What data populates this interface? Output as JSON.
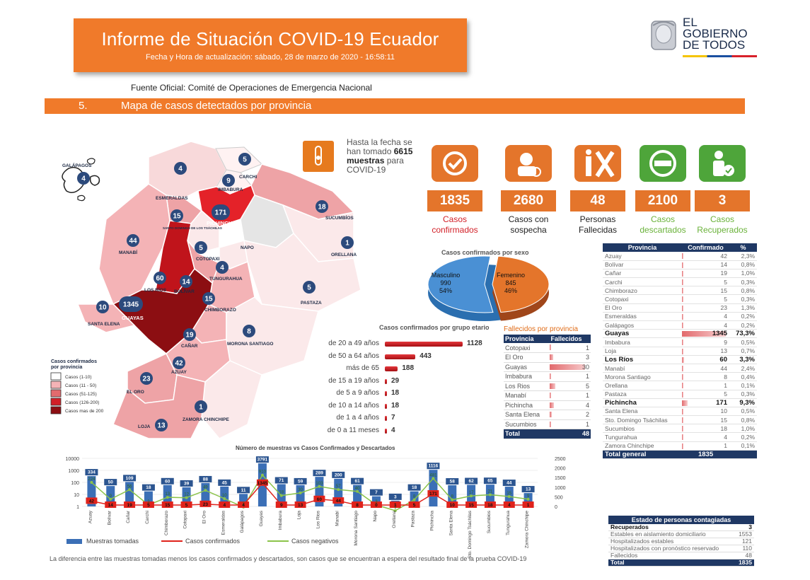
{
  "header": {
    "title": "Informe de Situación COVID-19 Ecuador",
    "subtitle": "Fecha y Hora de actualización: sábado, 28 de marzo de 2020 - 16:58:11"
  },
  "logo": {
    "line1": "EL",
    "line2": "GOBIERNO",
    "line3": "DE TODOS"
  },
  "source": "Fuente Oficial: Comité de Operaciones de Emergencia Nacional",
  "section": {
    "number": "5.",
    "title": "Mapa de casos detectados por provincia"
  },
  "map": {
    "provinces": [
      {
        "name": "GALÁPAGOS",
        "cases": "4"
      },
      {
        "name": "ESMERALDAS",
        "cases": "4"
      },
      {
        "name": "CARCHI",
        "cases": "5"
      },
      {
        "name": "IMBABURA",
        "cases": "9"
      },
      {
        "name": "PICHINCHA",
        "cases": "171"
      },
      {
        "name": "SANTO DOMINGO DE LOS TSÁCHILAS",
        "cases": "15"
      },
      {
        "name": "SUCUMBÍOS",
        "cases": "18"
      },
      {
        "name": "MANABÍ",
        "cases": "44"
      },
      {
        "name": "NAPO",
        "cases": ""
      },
      {
        "name": "ORELLANA",
        "cases": "1"
      },
      {
        "name": "COTOPAXI",
        "cases": "5"
      },
      {
        "name": "TUNGURAHUA",
        "cases": "4"
      },
      {
        "name": "LOS RÍOS",
        "cases": "60"
      },
      {
        "name": "BOLÍVAR",
        "cases": "14"
      },
      {
        "name": "PASTAZA",
        "cases": "5"
      },
      {
        "name": "CHIMBORAZO",
        "cases": "15"
      },
      {
        "name": "GUAYAS",
        "cases": "1345"
      },
      {
        "name": "SANTA ELENA",
        "cases": "10"
      },
      {
        "name": "MORONA SANTIAGO",
        "cases": "8"
      },
      {
        "name": "CAÑAR",
        "cases": "19"
      },
      {
        "name": "AZUAY",
        "cases": "42"
      },
      {
        "name": "EL ORO",
        "cases": "23"
      },
      {
        "name": "ZAMORA CHINCHIPE",
        "cases": "1"
      },
      {
        "name": "LOJA",
        "cases": "13"
      }
    ],
    "legend": {
      "title1": "Casos confirmados",
      "title2": "por provincia",
      "items": [
        {
          "label": "Casos (1-10)",
          "color": "#ffffff"
        },
        {
          "label": "Casos (11 - 50)",
          "color": "#f4b3b6"
        },
        {
          "label": "Casos (51-125)",
          "color": "#e26a6d"
        },
        {
          "label": "Casos (126-200)",
          "color": "#d21f27"
        },
        {
          "label": "Casos mas de 200",
          "color": "#8c0e12"
        }
      ]
    }
  },
  "samples": {
    "line1": "Hasta la fecha se",
    "line2a": "han tomado",
    "count": "6615",
    "line3a": "muestras",
    "line3b": "para",
    "line4": "COVID-19"
  },
  "stats": [
    {
      "value": "1835",
      "label1": "Casos",
      "label2": "confirmados",
      "color": "#e4752b",
      "labelcolor": "#d21f27",
      "icon": "check-icon"
    },
    {
      "value": "2680",
      "label1": "Casos con",
      "label2": "sospecha",
      "color": "#e4752b",
      "labelcolor": "#222222",
      "icon": "doctor-icon"
    },
    {
      "value": "48",
      "label1": "Personas",
      "label2": "Fallecidas",
      "color": "#e4752b",
      "labelcolor": "#222222",
      "icon": "deceased-icon"
    },
    {
      "value": "2100",
      "label1": "Casos",
      "label2": "descartados",
      "color": "#e4752b",
      "labelcolor": "#6ab23a",
      "icon": "minus-icon"
    },
    {
      "value": "3",
      "label1": "Casos",
      "label2": "Recuperados",
      "color": "#e4752b",
      "labelcolor": "#6ab23a",
      "icon": "recovered-icon"
    }
  ],
  "sex_chart": {
    "title": "Casos confirmados por sexo",
    "male": {
      "label": "Masculino",
      "value": "990",
      "pct": "54%",
      "fraction": 0.54
    },
    "female": {
      "label": "Femenino",
      "value": "845",
      "pct": "46%",
      "fraction": 0.46
    }
  },
  "age_chart": {
    "title": "Casos confirmados por grupo etario",
    "rows": [
      {
        "label": "de 20 a 49 años",
        "value": 1128
      },
      {
        "label": "de 50 a 64 años",
        "value": 443
      },
      {
        "label": "más de 65",
        "value": 188
      },
      {
        "label": "de 15 a 19 años",
        "value": 29
      },
      {
        "label": "de 5 a 9 años",
        "value": 18
      },
      {
        "label": "de 10 a 14 años",
        "value": 18
      },
      {
        "label": "de 1 a 4 años",
        "value": 7
      },
      {
        "label": "de 0 a 11 meses",
        "value": 4
      }
    ]
  },
  "fallecidos": {
    "title": "Fallecidos por provincia",
    "col1": "Provincia",
    "col2": "Fallecidos",
    "rows": [
      {
        "p": "Cotopaxi",
        "v": 1
      },
      {
        "p": "El Oro",
        "v": 3
      },
      {
        "p": "Guayas",
        "v": 30
      },
      {
        "p": "Imbabura",
        "v": 1
      },
      {
        "p": "Los Rios",
        "v": 5
      },
      {
        "p": "Manabí",
        "v": 1
      },
      {
        "p": "Pichincha",
        "v": 4
      },
      {
        "p": "Santa Elena",
        "v": 2
      },
      {
        "p": "Sucumbios",
        "v": 1
      }
    ],
    "total_label": "Total",
    "total": "48"
  },
  "province_table": {
    "col1": "Provincia",
    "col2": "Confirmado",
    "col3": "%",
    "rows": [
      {
        "p": "Azuay",
        "c": 42,
        "pct": "2,3%",
        "bold": false
      },
      {
        "p": "Bolívar",
        "c": 14,
        "pct": "0,8%",
        "bold": false
      },
      {
        "p": "Cañar",
        "c": 19,
        "pct": "1,0%",
        "bold": false
      },
      {
        "p": "Carchi",
        "c": 5,
        "pct": "0,3%",
        "bold": false
      },
      {
        "p": "Chimborazo",
        "c": 15,
        "pct": "0,8%",
        "bold": false
      },
      {
        "p": "Cotopaxi",
        "c": 5,
        "pct": "0,3%",
        "bold": false
      },
      {
        "p": "El Oro",
        "c": 23,
        "pct": "1,3%",
        "bold": false
      },
      {
        "p": "Esmeraldas",
        "c": 4,
        "pct": "0,2%",
        "bold": false
      },
      {
        "p": "Galápagos",
        "c": 4,
        "pct": "0,2%",
        "bold": false
      },
      {
        "p": "Guayas",
        "c": 1345,
        "pct": "73,3%",
        "bold": true
      },
      {
        "p": "Imbabura",
        "c": 9,
        "pct": "0,5%",
        "bold": false
      },
      {
        "p": "Loja",
        "c": 13,
        "pct": "0,7%",
        "bold": false
      },
      {
        "p": "Los Ríos",
        "c": 60,
        "pct": "3,3%",
        "bold": true
      },
      {
        "p": "Manabí",
        "c": 44,
        "pct": "2,4%",
        "bold": false
      },
      {
        "p": "Morona Santiago",
        "c": 8,
        "pct": "0,4%",
        "bold": false
      },
      {
        "p": "Orellana",
        "c": 1,
        "pct": "0,1%",
        "bold": false
      },
      {
        "p": "Pastaza",
        "c": 5,
        "pct": "0,3%",
        "bold": false
      },
      {
        "p": "Pichincha",
        "c": 171,
        "pct": "9,3%",
        "bold": true
      },
      {
        "p": "Santa Elena",
        "c": 10,
        "pct": "0,5%",
        "bold": false
      },
      {
        "p": "Sto. Domingo Tsáchilas",
        "c": 15,
        "pct": "0,8%",
        "bold": false
      },
      {
        "p": "Sucumbios",
        "c": 18,
        "pct": "1,0%",
        "bold": false
      },
      {
        "p": "Tungurahua",
        "c": 4,
        "pct": "0,2%",
        "bold": false
      },
      {
        "p": "Zamora Chinchipe",
        "c": 1,
        "pct": "0,1%",
        "bold": false
      }
    ],
    "total_label": "Total general",
    "total": "1835"
  },
  "status_table": {
    "title": "Estado de personas contagiadas",
    "rows": [
      {
        "l": "Recuperados",
        "v": "3",
        "bold": true
      },
      {
        "l": "Estables en aislamiento domiciliario",
        "v": "1553",
        "bold": false
      },
      {
        "l": "Hospitalizados estables",
        "v": "121",
        "bold": false
      },
      {
        "l": "Hospitalizados con pronóstico reservado",
        "v": "110",
        "bold": false
      },
      {
        "l": "Fallecidos",
        "v": "48",
        "bold": false
      }
    ],
    "total_label": "Total",
    "total": "1835"
  },
  "chart_data": {
    "type": "bar",
    "title": "Número de muestras vs Casos Confirmados y Descartados",
    "categories": [
      "Azuay",
      "Bolívar",
      "Cañar",
      "Carchi",
      "Chimborazo",
      "Cotopaxi",
      "El Oro",
      "Esmeraldas",
      "Galápagos",
      "Guayas",
      "Imbabura",
      "Loja",
      "Los Rios",
      "Manabí",
      "Morona Santiago",
      "Napo",
      "Orellana",
      "Pastaza",
      "Pichincha",
      "Santa Elena",
      "Sto. Domingo Tsáchilas",
      "Sucumbios",
      "Tungurahua",
      "Zamora Chinchipe"
    ],
    "series": [
      {
        "name": "Muestras tomadas",
        "values": [
          334,
          50,
          109,
          18,
          60,
          39,
          88,
          45,
          11,
          3791,
          71,
          59,
          289,
          200,
          61,
          7,
          3,
          18,
          1116,
          58,
          62,
          65,
          44,
          13
        ]
      },
      {
        "name": "Casos confirmados",
        "values": [
          42,
          14,
          19,
          5,
          15,
          5,
          23,
          4,
          4,
          1345,
          9,
          13,
          60,
          44,
          8,
          0,
          1,
          5,
          171,
          10,
          15,
          18,
          4,
          1
        ]
      },
      {
        "name": "Casos negativos",
        "values": [
          224,
          9,
          56,
          3,
          13,
          12,
          49,
          10,
          2,
          910,
          18,
          30,
          103,
          57,
          40,
          3,
          1,
          8,
          481,
          8,
          17,
          21,
          15,
          9
        ]
      }
    ],
    "left_axis_ticks": [
      "10000",
      "1000",
      "100",
      "10",
      "1"
    ],
    "right_axis_ticks": [
      "2500",
      "2000",
      "1500",
      "1000",
      "500",
      "0"
    ],
    "y_scale": "log"
  },
  "footnote": "La diferencia entre las muestras tomadas menos los casos confirmados y descartados, son casos que se encuentran a espera del resultado final de la prueba COVID-19",
  "colors": {
    "orange": "#f07a2a",
    "navy": "#1f3864",
    "darkred": "#8c0e12",
    "red": "#d21f27",
    "bubble": "#2c4a7c"
  }
}
